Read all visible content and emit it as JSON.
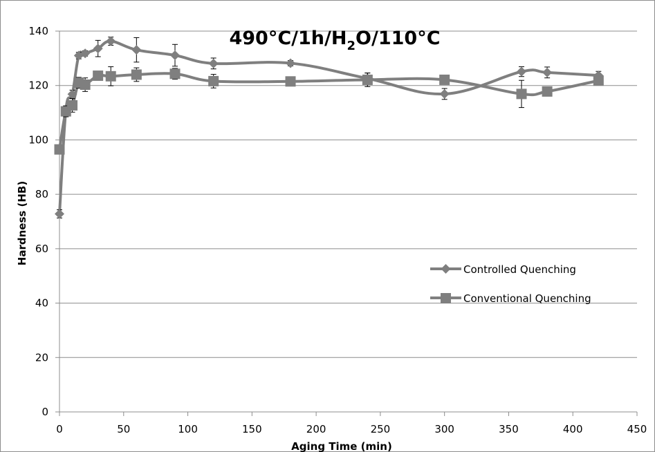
{
  "chart_data": {
    "type": "line",
    "title_parts": {
      "prefix": "490°C/1h/H",
      "subscript": "2",
      "suffix": "O/110°C"
    },
    "xlabel": "Aging Time (min)",
    "ylabel": "Hardness (HB)",
    "xlim": [
      0,
      450
    ],
    "ylim": [
      0,
      140
    ],
    "x_ticks": [
      0,
      50,
      100,
      150,
      200,
      250,
      300,
      350,
      400,
      450
    ],
    "y_ticks": [
      0,
      20,
      40,
      60,
      80,
      100,
      120,
      140
    ],
    "grid": "horizontal",
    "legend_position": "right",
    "series_color": "#7f7f7f",
    "series": [
      {
        "name": "Controlled Quenching",
        "marker": "diamond",
        "x": [
          0,
          5,
          10,
          15,
          20,
          30,
          40,
          60,
          90,
          120,
          180,
          240,
          300,
          360,
          380,
          420
        ],
        "y": [
          72.8,
          111.0,
          116.8,
          131.0,
          131.8,
          133.6,
          136.3,
          133.1,
          131.1,
          128.1,
          128.2,
          122.6,
          116.9,
          125.1,
          124.8,
          123.7
        ],
        "err": [
          1.5,
          1.5,
          1.5,
          1.2,
          1.0,
          3.0,
          1.5,
          4.5,
          4.0,
          2.0,
          1.0,
          2.0,
          2.0,
          1.8,
          2.0,
          1.5
        ]
      },
      {
        "name": "Conventional Quenching",
        "marker": "square",
        "x": [
          0,
          5,
          10,
          15,
          20,
          30,
          40,
          60,
          90,
          120,
          180,
          240,
          300,
          360,
          380,
          420
        ],
        "y": [
          96.5,
          110.5,
          112.7,
          121.0,
          120.3,
          123.6,
          123.4,
          124.0,
          124.3,
          121.6,
          121.5,
          122.1,
          122.1,
          116.9,
          117.8,
          121.8
        ],
        "err": [
          1.5,
          2.0,
          2.5,
          2.0,
          2.5,
          1.5,
          3.5,
          2.5,
          2.0,
          2.5,
          1.0,
          2.5,
          1.0,
          5.0,
          1.0,
          1.5
        ]
      }
    ]
  }
}
